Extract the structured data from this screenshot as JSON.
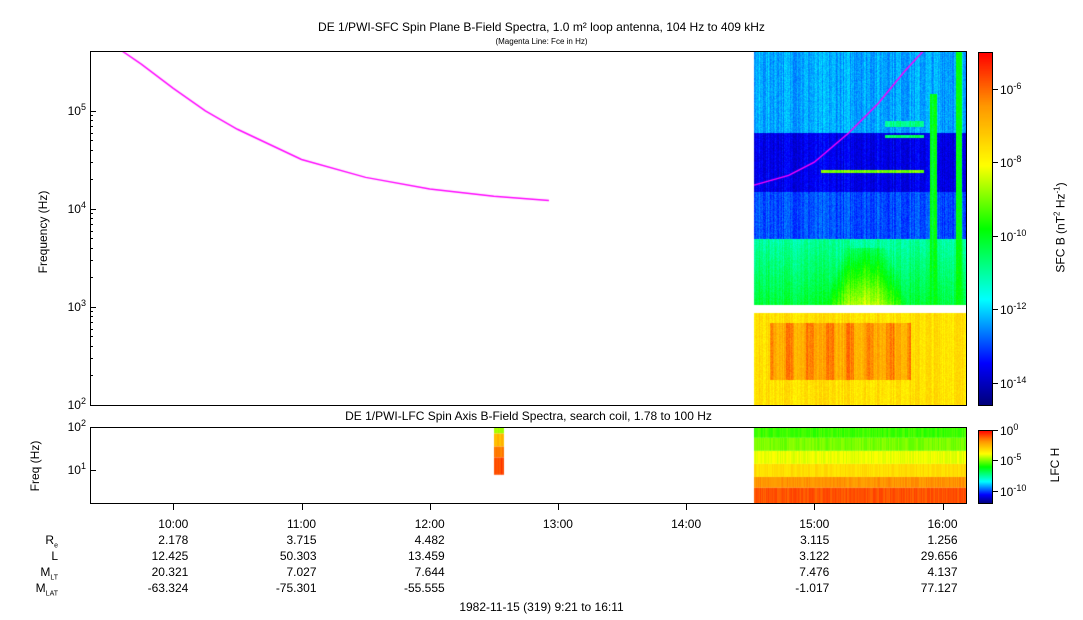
{
  "chart_data": [
    {
      "type": "heatmap",
      "title": "DE 1/PWI-SFC  Spin Plane B-Field Spectra, 1.0 m² loop antenna, 104 Hz to 409 kHz",
      "subtitle": "(Magenta Line: Fce in Hz)",
      "ylabel": "Frequency (Hz)",
      "yscale": "log",
      "ylim": [
        100,
        409000
      ],
      "y_ticks": [
        {
          "base": "10",
          "exp": "2",
          "value": 100
        },
        {
          "base": "10",
          "exp": "3",
          "value": 1000
        },
        {
          "base": "10",
          "exp": "4",
          "value": 10000
        },
        {
          "base": "10",
          "exp": "5",
          "value": 100000
        }
      ],
      "xlim_hours": [
        9.35,
        16.1833
      ],
      "data_time_range_hours": [
        14.53,
        16.1833
      ],
      "gap_freq_hz": [
        880,
        1060
      ],
      "colorbar": {
        "label": "SFC B (nT² Hz⁻¹)",
        "label_main": "SFC B (nT",
        "label_sup1": "2",
        "label_mid": " Hz",
        "label_sup2": "-1",
        "label_end": ")",
        "log_range": [
          -14.6,
          -5.0
        ],
        "ticks": [
          {
            "base": "10",
            "exp": "-6",
            "value": -6
          },
          {
            "base": "10",
            "exp": "-8",
            "value": -8
          },
          {
            "base": "10",
            "exp": "-10",
            "value": -10
          },
          {
            "base": "10",
            "exp": "-12",
            "value": -12
          },
          {
            "base": "10",
            "exp": "-14",
            "value": -14
          }
        ]
      },
      "intensity_bands_log10": [
        {
          "freq_hz": [
            60000,
            409000
          ],
          "value": -12.3
        },
        {
          "freq_hz": [
            15000,
            60000
          ],
          "value": -13.6
        },
        {
          "freq_hz": [
            5000,
            15000
          ],
          "value": -12.9
        },
        {
          "freq_hz": [
            1000,
            5000
          ],
          "value": -11.0
        },
        {
          "freq_hz": [
            100,
            1000
          ],
          "value": -7.6
        }
      ],
      "features": [
        {
          "name": "hump",
          "time_hours": [
            15.05,
            15.75
          ],
          "freq_hz": [
            1000,
            4000
          ],
          "value": -8.3
        },
        {
          "name": "core",
          "time_hours": [
            14.65,
            15.75
          ],
          "freq_hz": [
            180,
            700
          ],
          "value": -6.8
        },
        {
          "name": "line",
          "time_hours": [
            15.05,
            15.85
          ],
          "freq_hz": [
            23500,
            25500
          ],
          "value": -9.0
        },
        {
          "name": "line",
          "time_hours": [
            15.55,
            15.85
          ],
          "freq_hz": [
            54000,
            58000
          ],
          "value": -10.5
        },
        {
          "name": "line",
          "time_hours": [
            15.55,
            15.85
          ],
          "freq_hz": [
            70000,
            80000
          ],
          "value": -10.8
        },
        {
          "name": "burst",
          "time_hours": [
            15.9,
            15.95
          ],
          "freq_hz": [
            1000,
            150000
          ],
          "value": -10.0
        },
        {
          "name": "burst",
          "time_hours": [
            16.1,
            16.15
          ],
          "freq_hz": [
            1000,
            400000
          ],
          "value": -10.0
        }
      ],
      "fce_line": {
        "color": "#ff00ff",
        "segments": [
          [
            {
              "t": 9.6,
              "f": 409000
            },
            {
              "t": 9.75,
              "f": 300000
            },
            {
              "t": 10.0,
              "f": 170000
            },
            {
              "t": 10.25,
              "f": 100000
            },
            {
              "t": 10.5,
              "f": 65000
            },
            {
              "t": 11.0,
              "f": 32000
            },
            {
              "t": 11.5,
              "f": 21000
            },
            {
              "t": 12.0,
              "f": 16000
            },
            {
              "t": 12.5,
              "f": 13500
            },
            {
              "t": 12.93,
              "f": 12200
            }
          ],
          [
            {
              "t": 14.53,
              "f": 17500
            },
            {
              "t": 14.8,
              "f": 22000
            },
            {
              "t": 15.0,
              "f": 30000
            },
            {
              "t": 15.27,
              "f": 60000
            },
            {
              "t": 15.5,
              "f": 120000
            },
            {
              "t": 15.7,
              "f": 250000
            },
            {
              "t": 15.85,
              "f": 409000
            }
          ]
        ]
      }
    },
    {
      "type": "heatmap",
      "title": "DE 1/PWI-LFC  Spin Axis B-Field Spectra, search coil, 1.78 to 100 Hz",
      "ylabel": "Freq (Hz)",
      "yscale": "log",
      "ylim": [
        1.78,
        100
      ],
      "y_ticks": [
        {
          "base": "10",
          "exp": "1",
          "value": 10
        },
        {
          "base": "10",
          "exp": "2",
          "value": 100
        }
      ],
      "colorbar": {
        "label": "LFC H",
        "log_range": [
          -12,
          0
        ],
        "ticks": [
          {
            "base": "10",
            "exp": "0",
            "value": 0
          },
          {
            "base": "10",
            "exp": "-5",
            "value": -5
          },
          {
            "base": "10",
            "exp": "-10",
            "value": -10
          }
        ]
      },
      "blocks": [
        {
          "time_hours": [
            12.5,
            12.58
          ],
          "rows_log10": [
            [
              1.85,
              2.0,
              -4.5
            ],
            [
              1.55,
              1.85,
              -2.5
            ],
            [
              1.3,
              1.55,
              -1.5
            ],
            [
              0.9,
              1.3,
              -0.8
            ]
          ]
        },
        {
          "time_hours": [
            14.53,
            16.1833
          ],
          "rows_log10": [
            [
              1.75,
              2.0,
              -5.5
            ],
            [
              1.45,
              1.75,
              -5.0
            ],
            [
              1.15,
              1.45,
              -4.0
            ],
            [
              0.85,
              1.15,
              -3.2
            ],
            [
              0.6,
              0.85,
              -1.8
            ],
            [
              0.25,
              0.6,
              -1.0
            ]
          ]
        }
      ]
    }
  ],
  "x_axis": {
    "ticks": [
      {
        "label": "10:00",
        "hours": 10
      },
      {
        "label": "11:00",
        "hours": 11
      },
      {
        "label": "12:00",
        "hours": 12
      },
      {
        "label": "13:00",
        "hours": 13
      },
      {
        "label": "14:00",
        "hours": 14
      },
      {
        "label": "15:00",
        "hours": 15
      },
      {
        "label": "16:00",
        "hours": 16
      }
    ]
  },
  "ephemeris": {
    "rows": [
      {
        "label": "R",
        "sub": "e",
        "values": [
          "2.178",
          "3.715",
          "4.482",
          "",
          "",
          "3.115",
          "1.256"
        ]
      },
      {
        "label": "L",
        "sub": "",
        "values": [
          "12.425",
          "50.303",
          "13.459",
          "",
          "",
          "3.122",
          "29.656"
        ]
      },
      {
        "label": "M",
        "sub": "LT",
        "values": [
          "20.321",
          "7.027",
          "7.644",
          "",
          "",
          "7.476",
          "4.137"
        ]
      },
      {
        "label": "M",
        "sub": "LAT",
        "values": [
          "-63.324",
          "-75.301",
          "-55.555",
          "",
          "",
          "-1.017",
          "77.127"
        ]
      }
    ],
    "footer": "1982-11-15 (319) 9:21 to 16:11"
  }
}
